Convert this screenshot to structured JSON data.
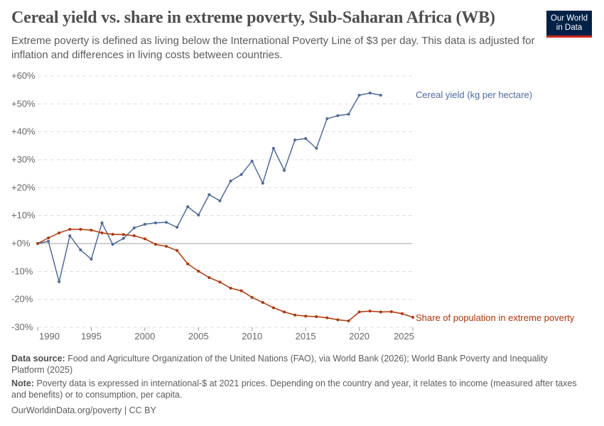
{
  "title": "Cereal yield vs. share in extreme poverty, Sub-Saharan Africa (WB)",
  "subtitle": "Extreme poverty is defined as living below the International Poverty Line of $3 per day. This data is adjusted for inflation and differences in living costs between countries.",
  "logo": {
    "line1": "Our World",
    "line2": "in Data",
    "bg": "#002147",
    "accent": "#ce261e"
  },
  "chart_data": {
    "type": "line",
    "xlim": [
      1990,
      2025
    ],
    "ylim": [
      -30,
      60
    ],
    "grid": true,
    "x_ticks": [
      "1990",
      "1995",
      "2000",
      "2005",
      "2010",
      "2015",
      "2020",
      "2025"
    ],
    "y_ticks": [
      "-30%",
      "-20%",
      "-10%",
      "+0%",
      "+10%",
      "+20%",
      "+30%",
      "+40%",
      "+50%",
      "+60%"
    ],
    "y_tick_values": [
      -30,
      -20,
      -10,
      0,
      10,
      20,
      30,
      40,
      50,
      60
    ],
    "legend_placement": "inline-right",
    "series": [
      {
        "name": "Cereal yield (kg per hectare)",
        "color": "#4c6a9c",
        "x": [
          1990,
          1991,
          1992,
          1993,
          1994,
          1995,
          1996,
          1997,
          1998,
          1999,
          2000,
          2001,
          2002,
          2003,
          2004,
          2005,
          2006,
          2007,
          2008,
          2009,
          2010,
          2011,
          2012,
          2013,
          2014,
          2015,
          2016,
          2017,
          2018,
          2019,
          2020,
          2021,
          2022
        ],
        "y": [
          0,
          0.8,
          -13.7,
          2.8,
          -2.3,
          -5.6,
          7.4,
          -0.3,
          1.8,
          5.6,
          6.9,
          7.4,
          7.6,
          5.8,
          13.2,
          10.2,
          17.5,
          15.3,
          22.4,
          24.7,
          29.5,
          21.6,
          34.1,
          26.2,
          37.1,
          37.6,
          34.1,
          44.7,
          45.8,
          46.3,
          53.1,
          53.9,
          53.1
        ]
      },
      {
        "name": "Share of population in extreme poverty",
        "color": "#b13507",
        "x": [
          1990,
          1991,
          1992,
          1993,
          1994,
          1995,
          1996,
          1997,
          1998,
          1999,
          2000,
          2001,
          2002,
          2003,
          2004,
          2005,
          2006,
          2007,
          2008,
          2009,
          2010,
          2011,
          2012,
          2013,
          2014,
          2015,
          2016,
          2017,
          2018,
          2019,
          2020,
          2021,
          2022,
          2023,
          2024,
          2025
        ],
        "y": [
          0,
          2.0,
          3.8,
          5.1,
          5.1,
          4.8,
          3.8,
          3.3,
          3.2,
          2.8,
          1.7,
          -0.3,
          -1.0,
          -2.5,
          -7.3,
          -9.9,
          -12.2,
          -13.8,
          -16.0,
          -16.9,
          -19.3,
          -21.1,
          -23.0,
          -24.5,
          -25.6,
          -26.0,
          -26.2,
          -26.6,
          -27.3,
          -27.7,
          -24.5,
          -24.2,
          -24.5,
          -24.4,
          -25.1,
          -26.4
        ]
      }
    ]
  },
  "footer": {
    "source_label": "Data source:",
    "source": "Food and Agriculture Organization of the United Nations (FAO), via World Bank (2026); World Bank Poverty and Inequality Platform (2025)",
    "note_label": "Note:",
    "note": "Poverty data is expressed in international-$ at 2021 prices. Depending on the country and year, it relates to income (measured after taxes and benefits) or to consumption, per capita.",
    "credit": "OurWorldinData.org/poverty | CC BY"
  }
}
